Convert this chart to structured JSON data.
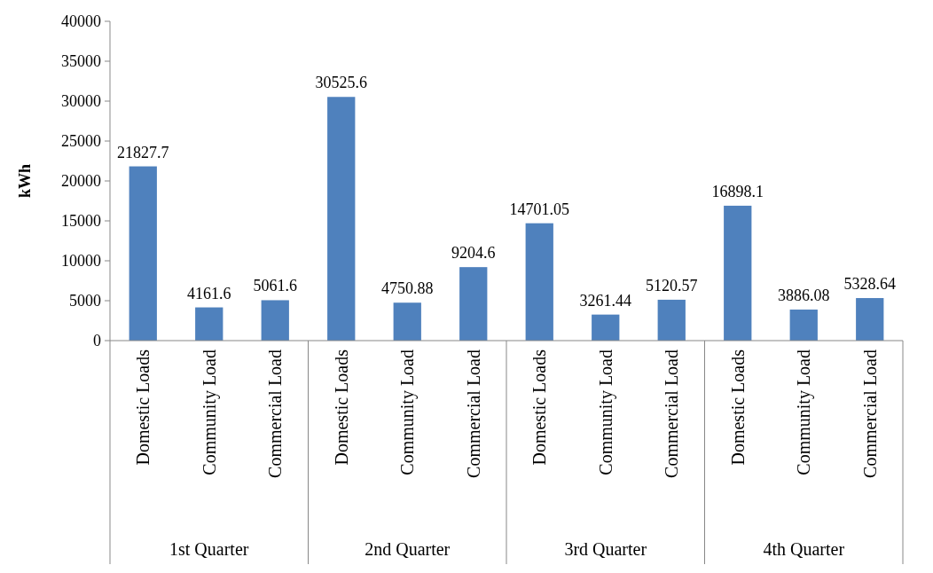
{
  "chart_data": {
    "type": "bar",
    "ylabel": "kWh",
    "categories": [
      "Domestic Loads",
      "Community Load",
      "Commercial Load",
      "Domestic Loads",
      "Community Load",
      "Commercial Load",
      "Domestic Loads",
      "Community Load",
      "Commercial Load",
      "Domestic Loads",
      "Community Load",
      "Commercial Load"
    ],
    "values": [
      21827.7,
      4161.6,
      5061.6,
      30525.6,
      4750.88,
      9204.6,
      14701.05,
      3261.44,
      5120.57,
      16898.1,
      3886.08,
      5328.64
    ],
    "color": "#4f81bd",
    "ylim": [
      0,
      40000
    ],
    "yticks": [
      0,
      5000,
      10000,
      15000,
      20000,
      25000,
      30000,
      35000,
      40000
    ],
    "data_labels": true,
    "grid": false,
    "annotations": [
      "1st Quarter",
      "2nd Quarter",
      "3rd Quarter",
      "4th Quarter"
    ]
  }
}
